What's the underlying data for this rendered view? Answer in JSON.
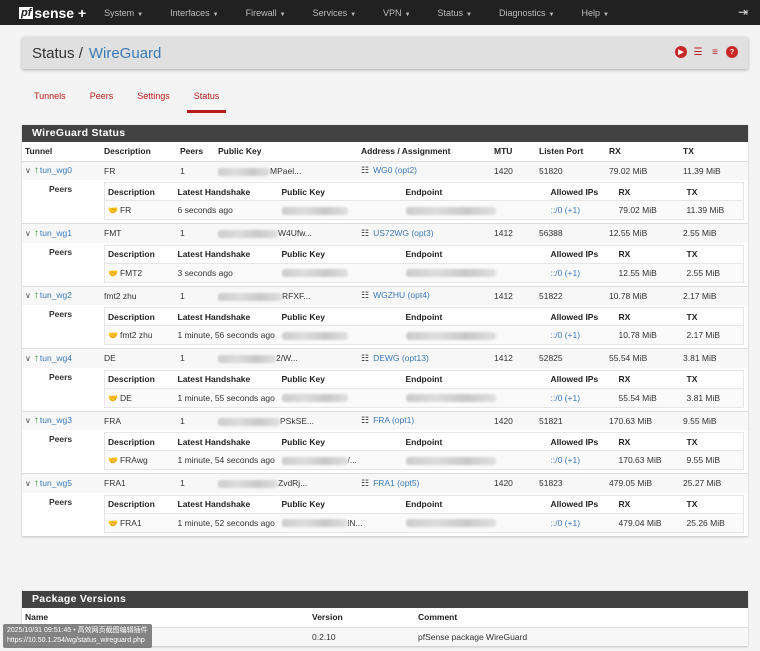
{
  "navbar": {
    "logo_prefix": "pf",
    "logo_text": "sense +",
    "items": [
      "System",
      "Interfaces",
      "Firewall",
      "Services",
      "VPN",
      "Status",
      "Diagnostics",
      "Help"
    ],
    "logout_icon": "logout-icon"
  },
  "header": {
    "crumb": "Status /",
    "crumb_link": "WireGuard",
    "icons": [
      "play-circle-icon",
      "sliders-icon",
      "log-icon",
      "help-icon"
    ]
  },
  "tabs": [
    {
      "label": "Tunnels",
      "active": false
    },
    {
      "label": "Peers",
      "active": false
    },
    {
      "label": "Settings",
      "active": false
    },
    {
      "label": "Status",
      "active": true
    }
  ],
  "status_panel": {
    "title": "WireGuard Status",
    "columns": [
      "Tunnel",
      "Description",
      "Peers",
      "Public Key",
      "Address / Assignment",
      "MTU",
      "Listen Port",
      "RX",
      "TX"
    ],
    "peer_label": "Peers",
    "peer_columns": [
      "Description",
      "Latest Handshake",
      "Public Key",
      "Endpoint",
      "Allowed IPs",
      "RX",
      "TX"
    ],
    "tunnels": [
      {
        "name": "tun_wg0",
        "description": "FR",
        "peers": "1",
        "pubkey_tail": "MPael...",
        "assignment": "WG0 (opt2)",
        "mtu": "1420",
        "port": "51820",
        "rx": "79.02 MiB",
        "tx": "11.39 MiB",
        "peer": {
          "description": "FR",
          "handshake": "6 seconds ago",
          "pubkey_tail": "",
          "allowed": "::/0 (+1)",
          "rx": "79.02 MiB",
          "tx": "11.39 MiB"
        }
      },
      {
        "name": "tun_wg1",
        "description": "FMT",
        "peers": "1",
        "pubkey_tail": "W4Ufw...",
        "assignment": "US72WG (opt3)",
        "mtu": "1412",
        "port": "56388",
        "rx": "12.55 MiB",
        "tx": "2.55 MiB",
        "peer": {
          "description": "FMT2",
          "handshake": "3 seconds ago",
          "pubkey_tail": "",
          "allowed": "::/0 (+1)",
          "rx": "12.55 MiB",
          "tx": "2.55 MiB"
        }
      },
      {
        "name": "tun_wg2",
        "description": "fmt2 zhu",
        "peers": "1",
        "pubkey_tail": "RFXF...",
        "assignment": "WGZHU (opt4)",
        "mtu": "1412",
        "port": "51822",
        "rx": "10.78 MiB",
        "tx": "2.17 MiB",
        "peer": {
          "description": "fmt2 zhu",
          "handshake": "1 minute, 56 seconds ago",
          "pubkey_tail": "",
          "allowed": "::/0 (+1)",
          "rx": "10.78 MiB",
          "tx": "2.17 MiB"
        }
      },
      {
        "name": "tun_wg4",
        "description": "DE",
        "peers": "1",
        "pubkey_tail": "2/W...",
        "assignment": "DEWG (opt13)",
        "mtu": "1412",
        "port": "52825",
        "rx": "55.54 MiB",
        "tx": "3.81 MiB",
        "peer": {
          "description": "DE",
          "handshake": "1 minute, 55 seconds ago",
          "pubkey_tail": "",
          "allowed": "::/0 (+1)",
          "rx": "55.54 MiB",
          "tx": "3.81 MiB"
        }
      },
      {
        "name": "tun_wg3",
        "description": "FRA",
        "peers": "1",
        "pubkey_tail": "PSkSE...",
        "assignment": "FRA (opt1)",
        "mtu": "1420",
        "port": "51821",
        "rx": "170.63 MiB",
        "tx": "9.55 MiB",
        "peer": {
          "description": "FRAwg",
          "handshake": "1 minute, 54 seconds ago",
          "pubkey_tail": "/...",
          "allowed": "::/0 (+1)",
          "rx": "170.63 MiB",
          "tx": "9.55 MiB"
        }
      },
      {
        "name": "tun_wg5",
        "description": "FRA1",
        "peers": "1",
        "pubkey_tail": "ZvdRj...",
        "assignment": "FRA1 (opt5)",
        "mtu": "1420",
        "port": "51823",
        "rx": "479.05 MiB",
        "tx": "25.27 MiB",
        "peer": {
          "description": "FRA1",
          "handshake": "1 minute, 52 seconds ago",
          "pubkey_tail": "lN...",
          "allowed": "::/0 (+1)",
          "rx": "479.04 MiB",
          "tx": "25.26 MiB"
        }
      }
    ]
  },
  "package_panel": {
    "title": "Package Versions",
    "columns": [
      "Name",
      "Version",
      "Comment"
    ],
    "rows": [
      {
        "name": "",
        "version": "0.2.10",
        "comment": "pfSense package WireGuard"
      }
    ]
  },
  "tooltip": {
    "line1": "2025/10/31 09:51:45 • 高效网页截图编辑插件",
    "line2": "https://10.50.1.254/wg/status_wireguard.php"
  },
  "colors": {
    "accent": "#b71c1c",
    "link": "#3a7ab8",
    "navbar": "#212121",
    "panel_header": "#424242",
    "status_up": "#2e9e2e"
  }
}
